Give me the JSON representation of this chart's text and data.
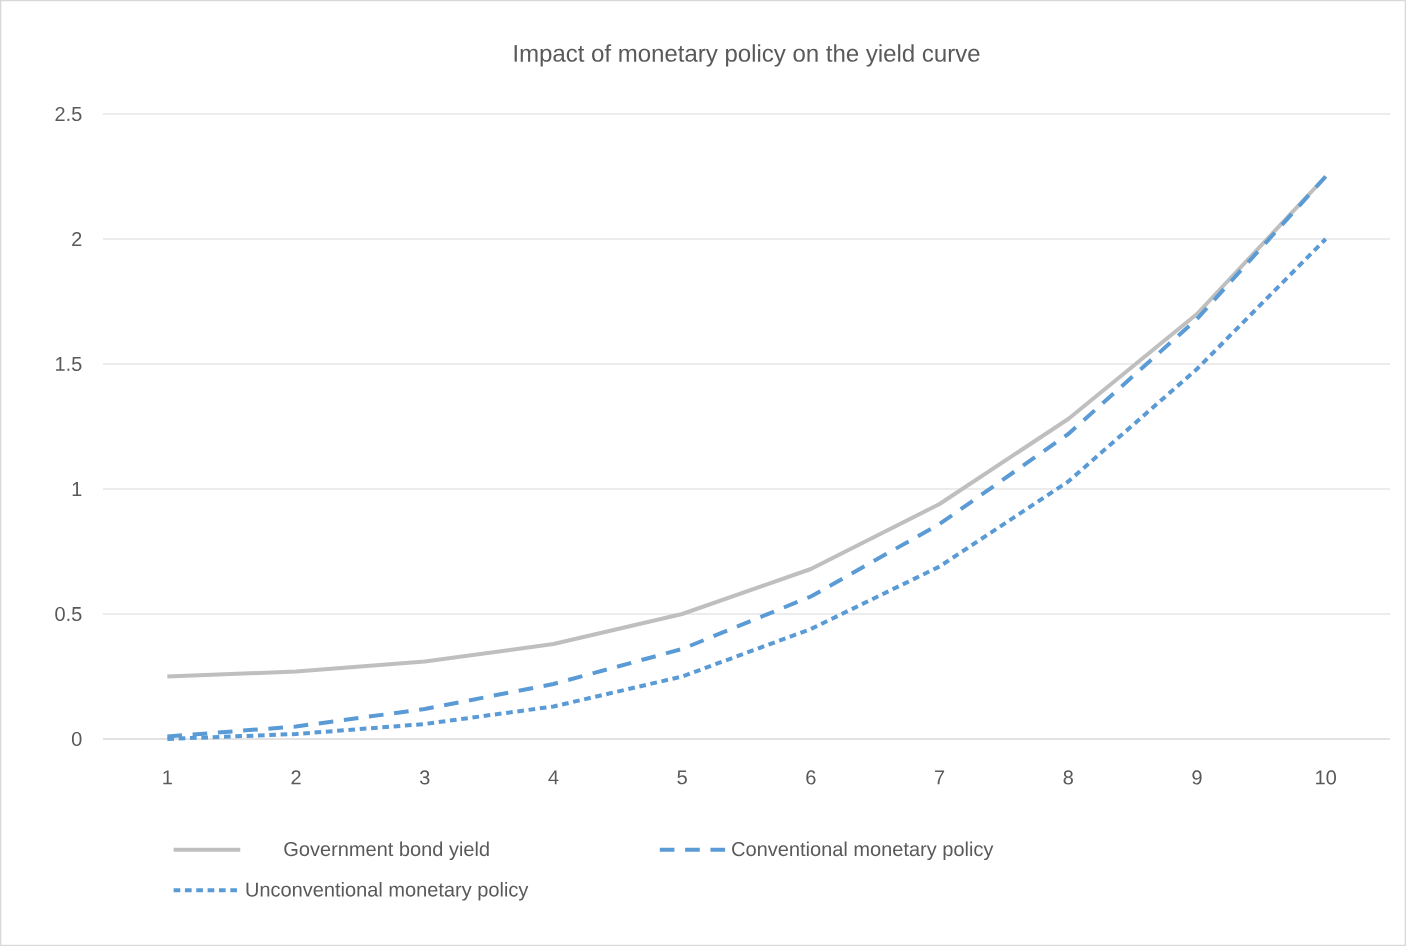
{
  "chart_data": {
    "type": "line",
    "title": "Impact of monetary policy on the yield curve",
    "categories": [
      "1",
      "2",
      "3",
      "4",
      "5",
      "6",
      "7",
      "8",
      "9",
      "10"
    ],
    "series": [
      {
        "name": "Government bond yield",
        "color": "#bfbfbf",
        "line_style": "solid",
        "values": [
          0.25,
          0.27,
          0.31,
          0.38,
          0.5,
          0.68,
          0.94,
          1.28,
          1.7,
          2.25
        ]
      },
      {
        "name": "Conventional monetary policy",
        "color": "#5b9bd5",
        "line_style": "dashed",
        "values": [
          0.01,
          0.05,
          0.12,
          0.22,
          0.36,
          0.57,
          0.86,
          1.22,
          1.68,
          2.25
        ]
      },
      {
        "name": "Unconventional monetary policy",
        "color": "#5b9bd5",
        "line_style": "dotted",
        "values": [
          0.0,
          0.02,
          0.06,
          0.13,
          0.25,
          0.44,
          0.69,
          1.03,
          1.48,
          2.0
        ]
      }
    ],
    "ylim": [
      0,
      2.5
    ],
    "yticks": [
      0,
      0.5,
      1,
      1.5,
      2,
      2.5
    ],
    "grid": "y",
    "legend": "bottom",
    "marker": "none"
  }
}
